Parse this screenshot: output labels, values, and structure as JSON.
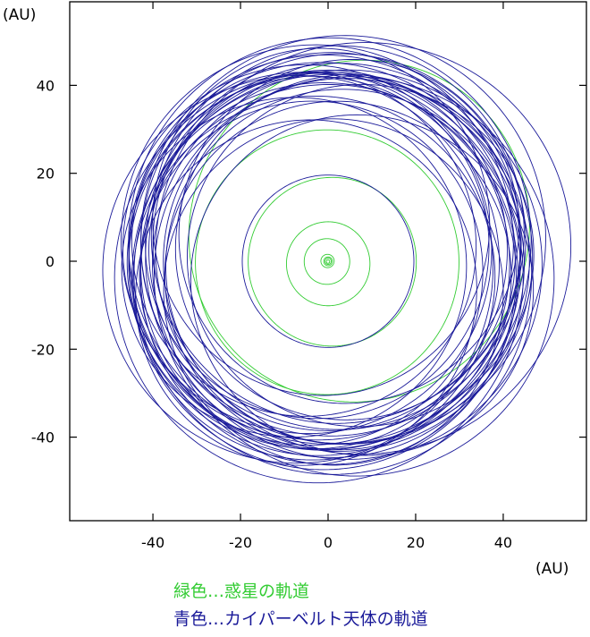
{
  "chart_data": {
    "type": "line",
    "title": "",
    "xlabel": "(AU)",
    "ylabel": "(AU)",
    "xlim": [
      -59,
      59
    ],
    "ylim": [
      -59,
      59
    ],
    "x_ticks": [
      -40,
      -20,
      0,
      20,
      40
    ],
    "y_ticks": [
      -40,
      -20,
      0,
      20,
      40
    ],
    "grid": false,
    "legend": [
      {
        "label": "緑色…惑星の軌道",
        "color": "#33cc33"
      },
      {
        "label": "青色…カイパーベルト天体の軌道",
        "color": "#1a1a99"
      }
    ],
    "series": [
      {
        "color": "#33cc33",
        "orbits": [
          {
            "a": 0.39,
            "e": 0.21,
            "w": 77
          },
          {
            "a": 0.72,
            "e": 0.01,
            "w": 131
          },
          {
            "a": 1.0,
            "e": 0.02,
            "w": 103
          },
          {
            "a": 1.52,
            "e": 0.09,
            "w": 336
          },
          {
            "a": 5.2,
            "e": 0.05,
            "w": 14
          },
          {
            "a": 9.55,
            "e": 0.06,
            "w": 93
          },
          {
            "a": 19.2,
            "e": 0.05,
            "w": 173
          },
          {
            "a": 30.1,
            "e": 0.01,
            "w": 48
          },
          {
            "a": 39.5,
            "e": 0.25,
            "w": 224
          }
        ]
      },
      {
        "color": "#1a1a99",
        "orbits": [
          {
            "a": 19.6,
            "e": 0.0,
            "w": 0
          },
          {
            "a": 39.4,
            "e": 0.2,
            "w": 10
          },
          {
            "a": 39.6,
            "e": 0.22,
            "w": 55
          },
          {
            "a": 39.4,
            "e": 0.18,
            "w": 100
          },
          {
            "a": 39.5,
            "e": 0.24,
            "w": 145
          },
          {
            "a": 39.6,
            "e": 0.19,
            "w": 190
          },
          {
            "a": 39.4,
            "e": 0.21,
            "w": 235
          },
          {
            "a": 39.5,
            "e": 0.23,
            "w": 280
          },
          {
            "a": 39.5,
            "e": 0.17,
            "w": 325
          },
          {
            "a": 39.3,
            "e": 0.12,
            "w": 35
          },
          {
            "a": 39.7,
            "e": 0.1,
            "w": 125
          },
          {
            "a": 39.5,
            "e": 0.14,
            "w": 215
          },
          {
            "a": 39.4,
            "e": 0.11,
            "w": 305
          },
          {
            "a": 43.5,
            "e": 0.05,
            "w": 20
          },
          {
            "a": 44.0,
            "e": 0.08,
            "w": 75
          },
          {
            "a": 43.8,
            "e": 0.03,
            "w": 140
          },
          {
            "a": 44.2,
            "e": 0.06,
            "w": 200
          },
          {
            "a": 43.6,
            "e": 0.09,
            "w": 260
          },
          {
            "a": 44.1,
            "e": 0.04,
            "w": 320
          },
          {
            "a": 43.2,
            "e": 0.07,
            "w": 95
          },
          {
            "a": 44.5,
            "e": 0.1,
            "w": 170
          },
          {
            "a": 42.8,
            "e": 0.12,
            "w": 240
          },
          {
            "a": 44.8,
            "e": 0.05,
            "w": 290
          },
          {
            "a": 42.5,
            "e": 0.08,
            "w": 5
          },
          {
            "a": 45.5,
            "e": 0.07,
            "w": 110
          },
          {
            "a": 45.0,
            "e": 0.11,
            "w": 300
          },
          {
            "a": 41.8,
            "e": 0.1,
            "w": 180
          },
          {
            "a": 41.5,
            "e": 0.12,
            "w": 50
          },
          {
            "a": 42.2,
            "e": 0.13,
            "w": 330
          },
          {
            "a": 46.5,
            "e": 0.13,
            "w": 235
          },
          {
            "a": 47.5,
            "e": 0.18,
            "w": 200
          },
          {
            "a": 45.8,
            "e": 0.15,
            "w": 150
          },
          {
            "a": 43.0,
            "e": 0.15,
            "w": 250
          },
          {
            "a": 44.6,
            "e": 0.16,
            "w": 15
          },
          {
            "a": 41.0,
            "e": 0.06,
            "w": 270
          },
          {
            "a": 40.5,
            "e": 0.09,
            "w": 160
          },
          {
            "a": 46.8,
            "e": 0.09,
            "w": 60
          },
          {
            "a": 46.2,
            "e": 0.1,
            "w": 265
          }
        ]
      }
    ]
  }
}
